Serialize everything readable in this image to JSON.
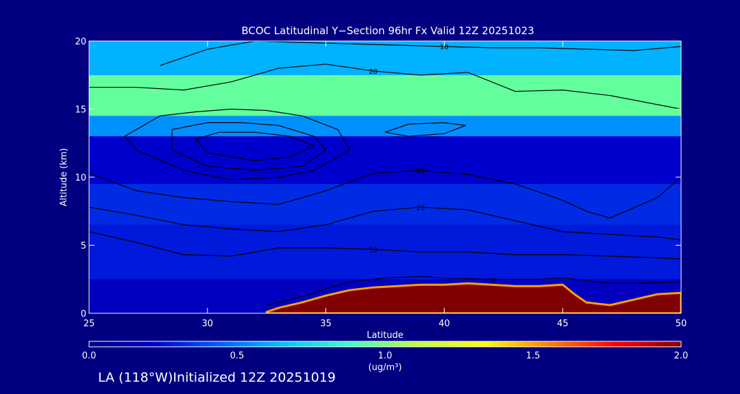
{
  "chart_data": {
    "type": "heatmap",
    "title": "BCOC Latitudinal Y−Section 96hr  Fx Valid 12Z 20251023",
    "xlabel": "Latitude",
    "ylabel": "Altitude (km)",
    "xlim": [
      25,
      50
    ],
    "ylim": [
      0,
      20
    ],
    "x_ticks": [
      "25",
      "30",
      "35",
      "40",
      "45",
      "50"
    ],
    "y_ticks": [
      "0",
      "5",
      "10",
      "15",
      "20"
    ],
    "colorbar": {
      "min": 0.0,
      "max": 2.0,
      "ticks": [
        "0.0",
        "0.5",
        "1.0",
        "1.5",
        "2.0"
      ],
      "units": "(ug/m³)",
      "colors": [
        "#000080",
        "#0000cd",
        "#0060ff",
        "#00c8ff",
        "#40ffc0",
        "#c0ff40",
        "#ffff00",
        "#ff8000",
        "#ff0000",
        "#800000"
      ]
    },
    "field_bands": [
      {
        "alt_bottom": 17.5,
        "alt_top": 20,
        "value": 0.62
      },
      {
        "alt_bottom": 14.5,
        "alt_top": 17.5,
        "value": 0.95
      },
      {
        "alt_bottom": 13,
        "alt_top": 14.5,
        "value": 0.55
      },
      {
        "alt_bottom": 9.5,
        "alt_top": 13,
        "value": 0.22
      },
      {
        "alt_bottom": 6.5,
        "alt_top": 9.5,
        "value": 0.32
      },
      {
        "alt_bottom": 2.5,
        "alt_top": 6.5,
        "value": 0.28
      },
      {
        "alt_bottom": 0,
        "alt_top": 2.5,
        "value": 0.18
      }
    ],
    "surface_maximum": {
      "lat": [
        32.5,
        33,
        34,
        35,
        36,
        37,
        38,
        39,
        40,
        41,
        42,
        43,
        44,
        45,
        45.5,
        46,
        47,
        48,
        49,
        50
      ],
      "alt": [
        0.1,
        0.4,
        0.8,
        1.3,
        1.7,
        1.9,
        2.0,
        2.1,
        2.1,
        2.2,
        2.1,
        2.0,
        2.0,
        2.1,
        1.4,
        0.8,
        0.6,
        1.0,
        1.4,
        1.5
      ],
      "value": 2.0
    },
    "contours": [
      {
        "label": "10",
        "lat": [
          28,
          30,
          32,
          34,
          36,
          38,
          40,
          42,
          44,
          46,
          48,
          50
        ],
        "alt": [
          18.2,
          19.4,
          20,
          19.9,
          19.8,
          19.7,
          19.6,
          19.5,
          19.5,
          19.4,
          19.3,
          19.6
        ]
      },
      {
        "label": "20",
        "lat": [
          25,
          27,
          29,
          31,
          33,
          35,
          37,
          39,
          41,
          43,
          45,
          47,
          50
        ],
        "alt": [
          16.6,
          16.6,
          16.4,
          17.0,
          18.0,
          18.3,
          17.8,
          17.5,
          17.7,
          16.3,
          16.4,
          16.0,
          15.0
        ]
      },
      {
        "label": "",
        "lat": [
          28,
          29.5,
          31,
          32.5,
          34,
          35.5,
          36,
          34.5,
          33,
          31,
          29,
          27,
          26.5,
          28
        ],
        "alt": [
          14.5,
          14.8,
          15.0,
          14.9,
          14.5,
          13.5,
          12.0,
          10.5,
          10.0,
          9.8,
          10.5,
          12.0,
          13.0,
          14.5
        ]
      },
      {
        "label": "",
        "lat": [
          28.5,
          30,
          31.5,
          33,
          34.5,
          35,
          34,
          32,
          30,
          28.5,
          28.5
        ],
        "alt": [
          13.5,
          14.0,
          14.0,
          13.8,
          13.0,
          12.0,
          10.8,
          10.5,
          10.8,
          12.0,
          13.5
        ]
      },
      {
        "label": "",
        "lat": [
          29.5,
          30.5,
          32,
          33.5,
          34.5,
          33.5,
          32,
          30,
          29.5
        ],
        "alt": [
          12.8,
          13.3,
          13.3,
          13.0,
          12.3,
          11.5,
          11.2,
          11.8,
          12.8
        ]
      },
      {
        "label": "",
        "lat": [
          37.5,
          38.5,
          40,
          40.9,
          40,
          38.5,
          37.5
        ],
        "alt": [
          13.3,
          13.9,
          14.0,
          13.8,
          13.2,
          13.0,
          13.3
        ]
      },
      {
        "label": "20",
        "lat": [
          25,
          27,
          29,
          31,
          33,
          35,
          37,
          39,
          41,
          43,
          45,
          46,
          47,
          49,
          50
        ],
        "alt": [
          10.3,
          9.0,
          8.5,
          8.2,
          8.0,
          9.0,
          10.3,
          10.5,
          10.2,
          9.5,
          8.3,
          7.5,
          7.0,
          8.5,
          10.0
        ]
      },
      {
        "label": "20",
        "lat": [
          25,
          27,
          29,
          31,
          33,
          35,
          37,
          39,
          41,
          43,
          45,
          47,
          49,
          50
        ],
        "alt": [
          7.8,
          7.2,
          6.5,
          6.2,
          6.0,
          6.5,
          7.5,
          7.8,
          7.6,
          6.8,
          6.0,
          5.8,
          5.6,
          5.4
        ]
      },
      {
        "label": "10",
        "lat": [
          25,
          27,
          29,
          31,
          33,
          35,
          37,
          39,
          41,
          43,
          45,
          47,
          50
        ],
        "alt": [
          6.0,
          5.2,
          4.3,
          4.2,
          4.8,
          4.8,
          4.7,
          4.5,
          4.5,
          4.3,
          4.3,
          4.2,
          4.0
        ]
      },
      {
        "label": "10",
        "lat": [
          32.5,
          34,
          35,
          36,
          37.5,
          39,
          40,
          42,
          44,
          45,
          46,
          47,
          48,
          50
        ],
        "alt": [
          0.6,
          1.2,
          1.8,
          2.3,
          2.6,
          2.7,
          2.6,
          2.5,
          2.5,
          2.6,
          2.4,
          2.2,
          2.2,
          2.3
        ]
      }
    ]
  },
  "footer": "LA (118°W)Initialized 12Z 20251019"
}
